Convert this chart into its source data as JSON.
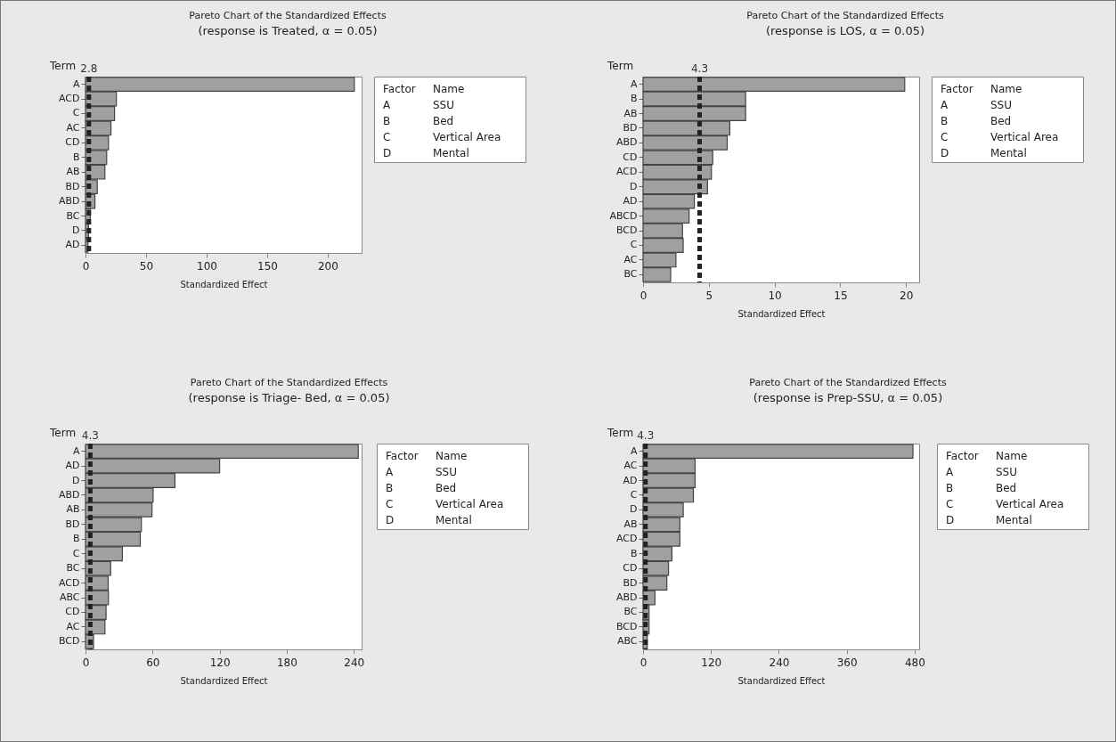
{
  "chart_data": [
    {
      "type": "bar",
      "orientation": "horizontal",
      "title": "Pareto Chart of the Standardized Effects",
      "subtitle": "(response is Treated, α = 0.05)",
      "xlabel": "Standardized Effect",
      "ylabel": "Term",
      "color": "#a0a0a0",
      "categories": [
        "A",
        "ACD",
        "C",
        "AC",
        "CD",
        "B",
        "AB",
        "BD",
        "ABD",
        "BC",
        "D",
        "AD"
      ],
      "values": [
        222,
        25.5,
        24,
        21,
        19,
        17.5,
        16,
        9.7,
        7.8,
        4,
        2.5,
        2
      ],
      "xlim": [
        0,
        228
      ],
      "xticks": [
        0,
        50,
        100,
        150,
        200
      ],
      "ref_lines": [
        {
          "axis": "x",
          "value": 2.8,
          "label": "2.8",
          "color": "#222222",
          "line_style": "dashed"
        }
      ],
      "annotations": [
        "Factor",
        "Name",
        "A",
        "SSU",
        "B",
        "Bed",
        "C",
        "Vertical Area",
        "D",
        "Mental"
      ]
    },
    {
      "type": "bar",
      "orientation": "horizontal",
      "title": "Pareto Chart of the Standardized Effects",
      "subtitle": "(response is LOS, α = 0.05)",
      "xlabel": "Standardized Effect",
      "ylabel": "Term",
      "color": "#a0a0a0",
      "categories": [
        "A",
        "B",
        "AB",
        "BD",
        "ABD",
        "CD",
        "ACD",
        "D",
        "AD",
        "ABCD",
        "BCD",
        "C",
        "AC",
        "BC"
      ],
      "values": [
        19.9,
        7.8,
        7.8,
        6.6,
        6.4,
        5.3,
        5.2,
        4.9,
        3.9,
        3.5,
        3.0,
        3.05,
        2.5,
        2.1
      ],
      "xlim": [
        0,
        21
      ],
      "xticks": [
        0,
        5,
        10,
        15,
        20
      ],
      "ref_lines": [
        {
          "axis": "x",
          "value": 4.3,
          "label": "4.3",
          "color": "#222222",
          "line_style": "dashed"
        }
      ],
      "annotations": [
        "Factor",
        "Name",
        "A",
        "SSU",
        "B",
        "Bed",
        "C",
        "Vertical Area",
        "D",
        "Mental"
      ]
    },
    {
      "type": "bar",
      "orientation": "horizontal",
      "title": "Pareto Chart of the Standardized Effects",
      "subtitle": "(response is Triage- Bed, α = 0.05)",
      "xlabel": "Standardized Effect",
      "ylabel": "Term",
      "color": "#a0a0a0",
      "categories": [
        "A",
        "AD",
        "D",
        "ABD",
        "AB",
        "BD",
        "B",
        "C",
        "BC",
        "ACD",
        "ABC",
        "CD",
        "AC",
        "BCD"
      ],
      "values": [
        244,
        120,
        80,
        60.5,
        59.5,
        50,
        49,
        33,
        22.5,
        20.3,
        20.5,
        18.4,
        17.4,
        7.2
      ],
      "xlim": [
        0,
        247
      ],
      "xticks": [
        0,
        60,
        120,
        180,
        240
      ],
      "ref_lines": [
        {
          "axis": "x",
          "value": 4.3,
          "label": "4.3",
          "color": "#222222",
          "line_style": "dashed"
        }
      ],
      "annotations": [
        "Factor",
        "Name",
        "A",
        "SSU",
        "B",
        "Bed",
        "C",
        "Vertical Area",
        "D",
        "Mental"
      ]
    },
    {
      "type": "bar",
      "orientation": "horizontal",
      "title": "Pareto Chart of the Standardized Effects",
      "subtitle": "(response is Prep-SSU, α = 0.05)",
      "xlabel": "Standardized Effect",
      "ylabel": "Term",
      "color": "#a0a0a0",
      "categories": [
        "A",
        "AC",
        "AD",
        "C",
        "D",
        "AB",
        "ACD",
        "B",
        "CD",
        "BD",
        "ABD",
        "BC",
        "BCD",
        "ABC"
      ],
      "values": [
        477,
        92,
        92,
        89,
        71,
        65,
        65,
        51,
        45,
        42,
        21,
        10.5,
        10.5,
        7.4
      ],
      "xlim": [
        0,
        488
      ],
      "xticks": [
        0,
        120,
        240,
        360,
        480
      ],
      "ref_lines": [
        {
          "axis": "x",
          "value": 4.3,
          "label": "4.3",
          "color": "#222222",
          "line_style": "dashed"
        }
      ],
      "annotations": [
        "Factor",
        "Name",
        "A",
        "SSU",
        "B",
        "Bed",
        "C",
        "Vertical Area",
        "D",
        "Mental"
      ]
    }
  ]
}
